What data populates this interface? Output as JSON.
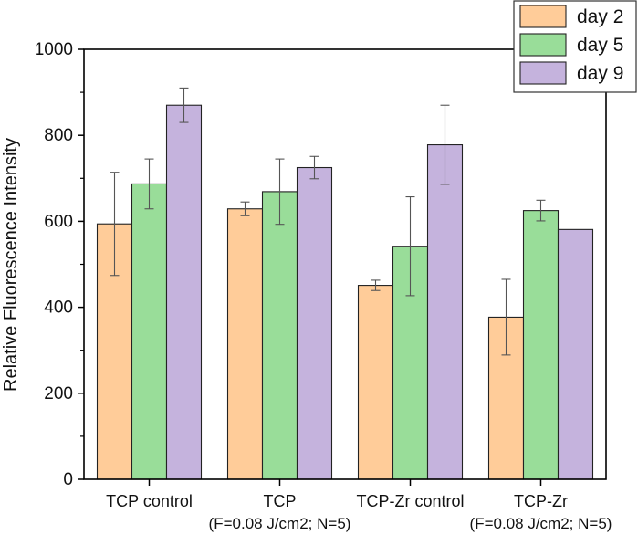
{
  "chart_data": {
    "type": "bar",
    "title": "",
    "xlabel": "",
    "ylabel": "Relative Fluorescence Intensity",
    "ylim": [
      0,
      1000
    ],
    "yticks": [
      0,
      200,
      400,
      600,
      800,
      1000
    ],
    "grid": false,
    "legend_position": "top-right",
    "categories": [
      {
        "line1": "TCP control",
        "line2": ""
      },
      {
        "line1": "TCP",
        "line2": "(F=0.08 J/cm2; N=5)"
      },
      {
        "line1": "TCP-Zr control",
        "line2": ""
      },
      {
        "line1": "TCP-Zr",
        "line2": "(F=0.08 J/cm2; N=5)"
      }
    ],
    "series": [
      {
        "name": "day 2",
        "color": "#FFCC99",
        "values": [
          594,
          629,
          451,
          377
        ],
        "errors": [
          120,
          16,
          12,
          88
        ]
      },
      {
        "name": "day 5",
        "color": "#99DD99",
        "values": [
          687,
          669,
          542,
          625
        ],
        "errors": [
          58,
          76,
          115,
          24
        ]
      },
      {
        "name": "day 9",
        "color": "#C5B3DD",
        "values": [
          870,
          725,
          778,
          581
        ],
        "errors": [
          40,
          26,
          92,
          0
        ]
      }
    ]
  }
}
